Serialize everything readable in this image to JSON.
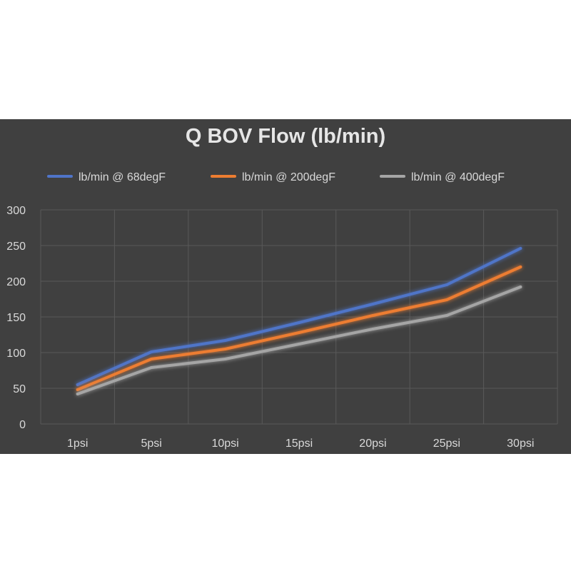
{
  "chart_data": {
    "type": "line",
    "title": "Q BOV Flow (lb/min)",
    "xlabel": "",
    "ylabel": "",
    "categories": [
      "1psi",
      "5psi",
      "10psi",
      "15psi",
      "20psi",
      "25psi",
      "30psi"
    ],
    "ylim": [
      0,
      300
    ],
    "yticks": [
      0,
      50,
      100,
      150,
      200,
      250,
      300
    ],
    "grid": true,
    "legend_position": "top",
    "series": [
      {
        "name": "lb/min @ 68degF",
        "color": "#4f74c8",
        "values": [
          55,
          101,
          117,
          142,
          168,
          195,
          246
        ]
      },
      {
        "name": "lb/min @ 200degF",
        "color": "#ed7d31",
        "values": [
          48,
          91,
          105,
          128,
          152,
          174,
          220
        ]
      },
      {
        "name": "lb/min @ 400degF",
        "color": "#a5a5a5",
        "values": [
          42,
          79,
          91,
          112,
          133,
          152,
          192
        ]
      }
    ],
    "colors": {
      "background": "#404040",
      "gridline": "#595959",
      "text": "#d9d9d9"
    }
  }
}
